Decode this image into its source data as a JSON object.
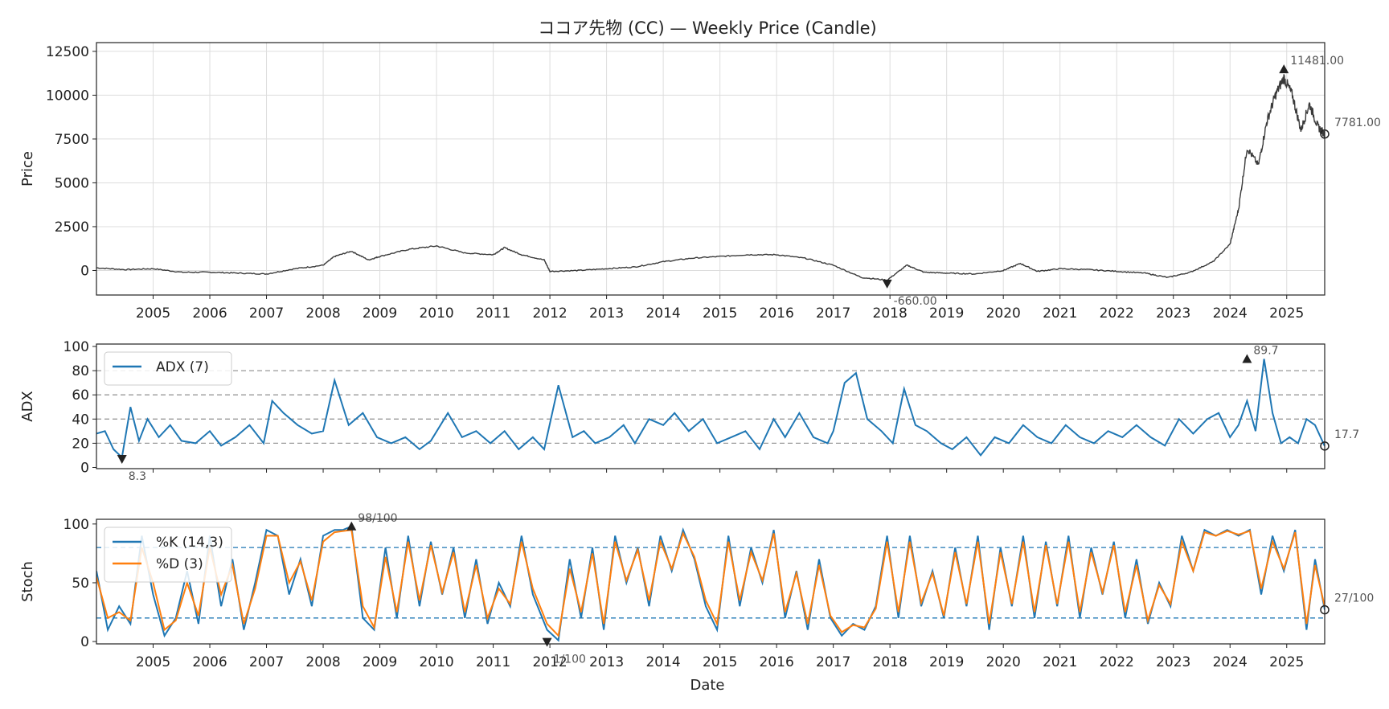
{
  "chart_data": [
    {
      "type": "candlestick",
      "title": "ココア先物 (CC) — Weekly Price (Candle)",
      "ylabel": "Price",
      "xlabel": "",
      "ylim": [
        -1400,
        13000
      ],
      "yticks": [
        "0",
        "2500",
        "5000",
        "7500",
        "10000",
        "12500"
      ],
      "ytick_values": [
        0,
        2500,
        5000,
        7500,
        10000,
        12500
      ],
      "xlim": [
        2004.0,
        2025.67
      ],
      "xticks": [
        "2005",
        "2006",
        "2007",
        "2008",
        "2009",
        "2010",
        "2011",
        "2012",
        "2013",
        "2014",
        "2015",
        "2016",
        "2017",
        "2018",
        "2019",
        "2020",
        "2021",
        "2022",
        "2023",
        "2024",
        "2025"
      ],
      "grid": true,
      "series": [
        {
          "x": [
            2004.0,
            2004.5,
            2005.0,
            2005.5,
            2006.0,
            2006.5,
            2007.0,
            2007.5,
            2008.0,
            2008.2,
            2008.5,
            2008.8,
            2009.0,
            2009.5,
            2010.0,
            2010.5,
            2011.0,
            2011.2,
            2011.5,
            2011.9,
            2012.0,
            2012.5,
            2013.0,
            2013.5,
            2014.0,
            2014.5,
            2015.0,
            2015.5,
            2016.0,
            2016.5,
            2017.0,
            2017.5,
            2017.95,
            2018.3,
            2018.6,
            2019.0,
            2019.5,
            2020.0,
            2020.3,
            2020.6,
            2021.0,
            2021.5,
            2022.0,
            2022.5,
            2022.9,
            2023.3,
            2023.7,
            2024.0,
            2024.15,
            2024.3,
            2024.5,
            2024.65,
            2024.8,
            2024.95,
            2025.1,
            2025.25,
            2025.4,
            2025.55,
            2025.67
          ],
          "close": [
            150,
            50,
            100,
            -100,
            -100,
            -150,
            -200,
            100,
            300,
            800,
            1100,
            600,
            800,
            1200,
            1400,
            1000,
            900,
            1300,
            900,
            600,
            -50,
            0,
            100,
            200,
            500,
            700,
            800,
            900,
            900,
            700,
            300,
            -400,
            -550,
            300,
            -100,
            -150,
            -200,
            0,
            400,
            -50,
            100,
            50,
            -50,
            -150,
            -400,
            -100,
            500,
            1500,
            3500,
            7000,
            6000,
            8500,
            10000,
            11000,
            10000,
            8000,
            9500,
            8200,
            7781
          ]
        }
      ],
      "annotations": [
        {
          "label": "11481.00",
          "x": 2024.95,
          "y": 11481,
          "marker": "up"
        },
        {
          "label": "-660.00",
          "x": 2017.95,
          "y": -660,
          "marker": "down"
        },
        {
          "label": "7781.00",
          "x": 2025.67,
          "y": 7781,
          "marker": "last"
        }
      ]
    },
    {
      "type": "line",
      "title": "",
      "ylabel": "ADX",
      "ylim": [
        -1,
        102
      ],
      "yticks": [
        "0",
        "20",
        "40",
        "60",
        "80",
        "100"
      ],
      "ytick_values": [
        0,
        20,
        40,
        60,
        80,
        100
      ],
      "xlim": [
        2004.0,
        2025.67
      ],
      "hlines": [
        20,
        40,
        60,
        80
      ],
      "legend": "upper left",
      "series": [
        {
          "name": "ADX (7)",
          "color": "#1f77b4",
          "x": [
            2004.0,
            2004.15,
            2004.3,
            2004.45,
            2004.6,
            2004.75,
            2004.9,
            2005.1,
            2005.3,
            2005.5,
            2005.75,
            2006.0,
            2006.2,
            2006.45,
            2006.7,
            2006.95,
            2007.1,
            2007.3,
            2007.55,
            2007.8,
            2008.0,
            2008.2,
            2008.45,
            2008.7,
            2008.95,
            2009.2,
            2009.45,
            2009.7,
            2009.9,
            2010.2,
            2010.45,
            2010.7,
            2010.95,
            2011.2,
            2011.45,
            2011.7,
            2011.9,
            2012.15,
            2012.4,
            2012.6,
            2012.8,
            2013.05,
            2013.3,
            2013.5,
            2013.75,
            2014.0,
            2014.2,
            2014.45,
            2014.7,
            2014.95,
            2015.2,
            2015.45,
            2015.7,
            2015.95,
            2016.15,
            2016.4,
            2016.65,
            2016.9,
            2017.0,
            2017.2,
            2017.4,
            2017.6,
            2017.85,
            2018.05,
            2018.25,
            2018.45,
            2018.65,
            2018.9,
            2019.1,
            2019.35,
            2019.6,
            2019.85,
            2020.1,
            2020.35,
            2020.6,
            2020.85,
            2021.1,
            2021.35,
            2021.6,
            2021.85,
            2022.1,
            2022.35,
            2022.6,
            2022.85,
            2023.1,
            2023.35,
            2023.6,
            2023.8,
            2024.0,
            2024.15,
            2024.3,
            2024.45,
            2024.6,
            2024.75,
            2024.9,
            2025.05,
            2025.2,
            2025.35,
            2025.5,
            2025.67
          ],
          "y": [
            28,
            30,
            15,
            8.3,
            50,
            22,
            40,
            25,
            35,
            22,
            20,
            30,
            18,
            25,
            35,
            20,
            55,
            45,
            35,
            28,
            30,
            72,
            35,
            45,
            25,
            20,
            25,
            15,
            22,
            45,
            25,
            30,
            20,
            30,
            15,
            25,
            15,
            68,
            25,
            30,
            20,
            25,
            35,
            20,
            40,
            35,
            45,
            30,
            40,
            20,
            25,
            30,
            15,
            40,
            25,
            45,
            25,
            20,
            30,
            70,
            78,
            40,
            30,
            20,
            65,
            35,
            30,
            20,
            15,
            25,
            10,
            25,
            20,
            35,
            25,
            20,
            35,
            25,
            20,
            30,
            25,
            35,
            25,
            18,
            40,
            28,
            40,
            45,
            25,
            35,
            55,
            30,
            89.7,
            45,
            20,
            25,
            20,
            40,
            35,
            17.7
          ]
        }
      ],
      "annotations": [
        {
          "label": "89.7",
          "x": 2024.3,
          "y": 89.7,
          "marker": "up"
        },
        {
          "label": "8.3",
          "x": 2004.45,
          "y": 8.3,
          "marker": "down"
        },
        {
          "label": "17.7",
          "x": 2025.67,
          "y": 17.7,
          "marker": "last"
        }
      ]
    },
    {
      "type": "line",
      "title": "",
      "xlabel": "Date",
      "ylabel": "Stoch",
      "ylim": [
        -2,
        104
      ],
      "yticks": [
        "0",
        "50",
        "100"
      ],
      "ytick_values": [
        0,
        50,
        100
      ],
      "xlim": [
        2004.0,
        2025.67
      ],
      "xticks": [
        "2005",
        "2006",
        "2007",
        "2008",
        "2009",
        "2010",
        "2011",
        "2012",
        "2013",
        "2014",
        "2015",
        "2016",
        "2017",
        "2018",
        "2019",
        "2020",
        "2021",
        "2022",
        "2023",
        "2024",
        "2025"
      ],
      "hlines": [
        20,
        80
      ],
      "legend": "upper left",
      "series": [
        {
          "name": "%K (14,3)",
          "color": "#1f77b4",
          "x": [
            2004.0,
            2004.2,
            2004.4,
            2004.6,
            2004.8,
            2005.0,
            2005.2,
            2005.4,
            2005.6,
            2005.8,
            2006.0,
            2006.2,
            2006.4,
            2006.6,
            2006.8,
            2007.0,
            2007.2,
            2007.4,
            2007.6,
            2007.8,
            2008.0,
            2008.2,
            2008.35,
            2008.5,
            2008.7,
            2008.9,
            2009.1,
            2009.3,
            2009.5,
            2009.7,
            2009.9,
            2010.1,
            2010.3,
            2010.5,
            2010.7,
            2010.9,
            2011.1,
            2011.3,
            2011.5,
            2011.7,
            2011.95,
            2012.15,
            2012.35,
            2012.55,
            2012.75,
            2012.95,
            2013.15,
            2013.35,
            2013.55,
            2013.75,
            2013.95,
            2014.15,
            2014.35,
            2014.55,
            2014.75,
            2014.95,
            2015.15,
            2015.35,
            2015.55,
            2015.75,
            2015.95,
            2016.15,
            2016.35,
            2016.55,
            2016.75,
            2016.95,
            2017.15,
            2017.35,
            2017.55,
            2017.75,
            2017.95,
            2018.15,
            2018.35,
            2018.55,
            2018.75,
            2018.95,
            2019.15,
            2019.35,
            2019.55,
            2019.75,
            2019.95,
            2020.15,
            2020.35,
            2020.55,
            2020.75,
            2020.95,
            2021.15,
            2021.35,
            2021.55,
            2021.75,
            2021.95,
            2022.15,
            2022.35,
            2022.55,
            2022.75,
            2022.95,
            2023.15,
            2023.35,
            2023.55,
            2023.75,
            2023.95,
            2024.15,
            2024.35,
            2024.55,
            2024.75,
            2024.95,
            2025.15,
            2025.35,
            2025.5,
            2025.67
          ],
          "y": [
            60,
            10,
            30,
            15,
            90,
            40,
            5,
            20,
            60,
            15,
            90,
            30,
            70,
            10,
            50,
            95,
            90,
            40,
            70,
            30,
            90,
            95,
            95,
            98,
            20,
            10,
            80,
            20,
            90,
            30,
            85,
            40,
            80,
            20,
            70,
            15,
            50,
            30,
            90,
            40,
            10,
            1,
            70,
            20,
            80,
            10,
            90,
            50,
            80,
            30,
            90,
            60,
            95,
            70,
            30,
            10,
            90,
            30,
            80,
            50,
            95,
            20,
            60,
            10,
            70,
            20,
            5,
            15,
            10,
            30,
            90,
            20,
            90,
            30,
            60,
            20,
            80,
            30,
            90,
            10,
            80,
            30,
            90,
            20,
            85,
            30,
            90,
            20,
            80,
            40,
            85,
            20,
            70,
            15,
            50,
            30,
            90,
            60,
            95,
            90,
            95,
            90,
            95,
            40,
            90,
            60,
            95,
            10,
            70,
            27
          ]
        },
        {
          "name": "%D (3)",
          "color": "#ff7f0e",
          "x": [
            2004.0,
            2004.2,
            2004.4,
            2004.6,
            2004.8,
            2005.0,
            2005.2,
            2005.4,
            2005.6,
            2005.8,
            2006.0,
            2006.2,
            2006.4,
            2006.6,
            2006.8,
            2007.0,
            2007.2,
            2007.4,
            2007.6,
            2007.8,
            2008.0,
            2008.2,
            2008.35,
            2008.5,
            2008.7,
            2008.9,
            2009.1,
            2009.3,
            2009.5,
            2009.7,
            2009.9,
            2010.1,
            2010.3,
            2010.5,
            2010.7,
            2010.9,
            2011.1,
            2011.3,
            2011.5,
            2011.7,
            2011.95,
            2012.15,
            2012.35,
            2012.55,
            2012.75,
            2012.95,
            2013.15,
            2013.35,
            2013.55,
            2013.75,
            2013.95,
            2014.15,
            2014.35,
            2014.55,
            2014.75,
            2014.95,
            2015.15,
            2015.35,
            2015.55,
            2015.75,
            2015.95,
            2016.15,
            2016.35,
            2016.55,
            2016.75,
            2016.95,
            2017.15,
            2017.35,
            2017.55,
            2017.75,
            2017.95,
            2018.15,
            2018.35,
            2018.55,
            2018.75,
            2018.95,
            2019.15,
            2019.35,
            2019.55,
            2019.75,
            2019.95,
            2020.15,
            2020.35,
            2020.55,
            2020.75,
            2020.95,
            2021.15,
            2021.35,
            2021.55,
            2021.75,
            2021.95,
            2022.15,
            2022.35,
            2022.55,
            2022.75,
            2022.95,
            2023.15,
            2023.35,
            2023.55,
            2023.75,
            2023.95,
            2024.15,
            2024.35,
            2024.55,
            2024.75,
            2024.95,
            2025.15,
            2025.35,
            2025.5,
            2025.67
          ],
          "y": [
            55,
            20,
            25,
            18,
            80,
            50,
            10,
            18,
            50,
            22,
            80,
            40,
            65,
            15,
            45,
            90,
            90,
            50,
            68,
            35,
            85,
            93,
            94,
            95,
            30,
            12,
            72,
            25,
            85,
            35,
            82,
            42,
            76,
            25,
            65,
            20,
            45,
            32,
            85,
            45,
            15,
            5,
            62,
            25,
            75,
            15,
            85,
            52,
            78,
            35,
            85,
            62,
            92,
            72,
            35,
            15,
            85,
            35,
            76,
            52,
            92,
            25,
            58,
            15,
            65,
            22,
            8,
            14,
            12,
            28,
            85,
            25,
            85,
            33,
            58,
            22,
            76,
            32,
            85,
            15,
            76,
            32,
            85,
            25,
            82,
            32,
            85,
            25,
            76,
            42,
            82,
            25,
            65,
            18,
            48,
            32,
            85,
            60,
            93,
            90,
            94,
            91,
            94,
            45,
            85,
            62,
            93,
            15,
            65,
            30
          ]
        }
      ],
      "annotations": [
        {
          "label": "98/100",
          "x": 2008.5,
          "y": 98,
          "marker": "up"
        },
        {
          "label": "1/100",
          "x": 2011.95,
          "y": 1,
          "marker": "down"
        },
        {
          "label": "27/100",
          "x": 2025.67,
          "y": 27,
          "marker": "last"
        }
      ]
    }
  ]
}
